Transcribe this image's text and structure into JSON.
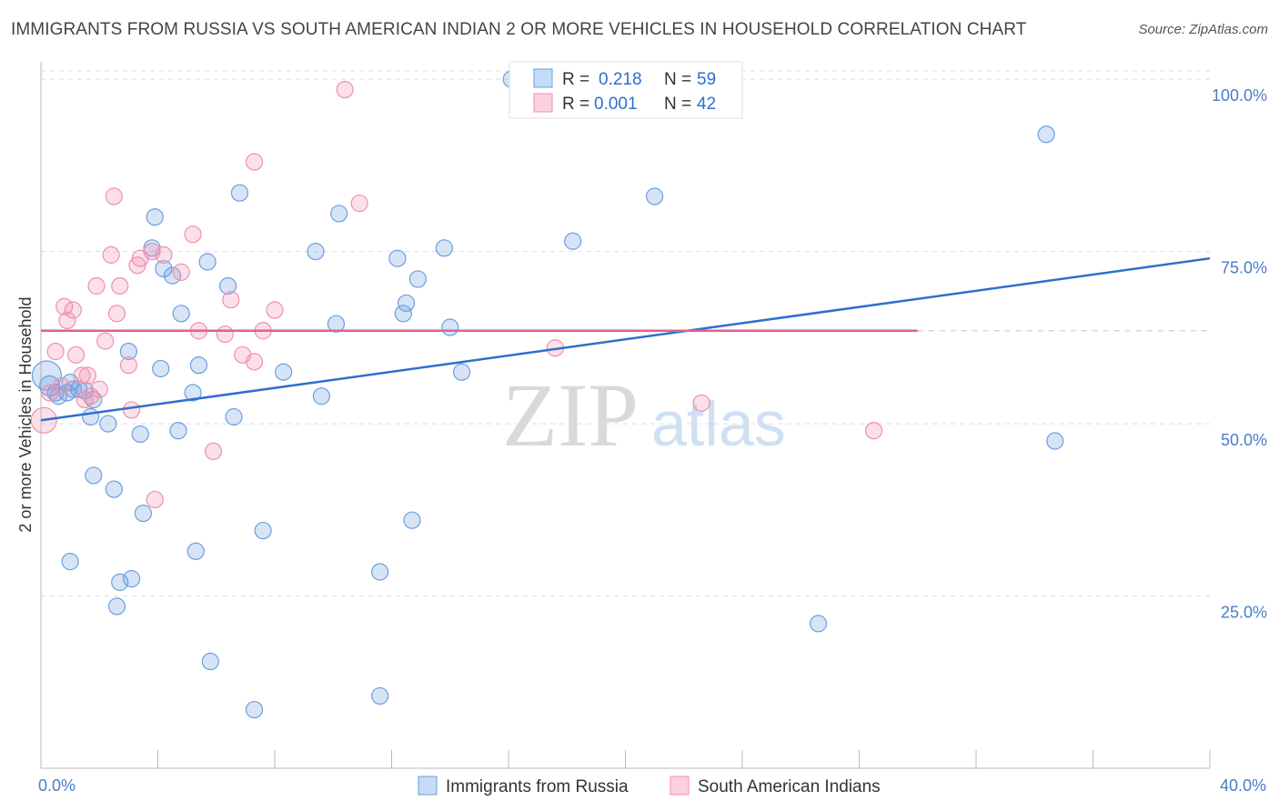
{
  "title": "IMMIGRANTS FROM RUSSIA VS SOUTH AMERICAN INDIAN 2 OR MORE VEHICLES IN HOUSEHOLD CORRELATION CHART",
  "source": "Source: ZipAtlas.com",
  "colors": {
    "blue": "#6b9fe0",
    "blue_line": "#2e6fd0",
    "pink": "#f08fb0",
    "pink_line": "#e0608f",
    "tick": "#4a7cc8"
  },
  "legend": {
    "r_label": "R =",
    "n_label": "N =",
    "rows": [
      {
        "r": "0.218",
        "n": "59",
        "color": "blue"
      },
      {
        "r": "0.001",
        "n": "42",
        "color": "pink"
      }
    ]
  },
  "bottom_legend": [
    "Immigrants from Russia",
    "South American Indians"
  ],
  "watermark": {
    "zip": "ZIP",
    "atlas": "atlas"
  },
  "chart_data": {
    "type": "scatter",
    "xlabel": "",
    "ylabel": "2 or more Vehicles in Household",
    "x_tick_labels": [
      "0.0%",
      "40.0%"
    ],
    "y_tick_labels": [
      "25.0%",
      "50.0%",
      "75.0%",
      "100.0%"
    ],
    "xlim": [
      0,
      40
    ],
    "ylim": [
      0,
      102
    ],
    "y_ticks": [
      25,
      50,
      75,
      100
    ],
    "series": [
      {
        "name": "Immigrants from Russia",
        "color": "blue",
        "trend": {
          "x": [
            0,
            40
          ],
          "y": [
            50.5,
            74.0
          ]
        },
        "points": [
          [
            0.2,
            57,
            16
          ],
          [
            0.3,
            55.5,
            11
          ],
          [
            0.5,
            54.5,
            9
          ],
          [
            0.9,
            54.5,
            9
          ],
          [
            1.0,
            56,
            9
          ],
          [
            1.3,
            55,
            9
          ],
          [
            1.5,
            54.8,
            9
          ],
          [
            1.7,
            51,
            9
          ],
          [
            1.8,
            53.5,
            9
          ],
          [
            2.3,
            50,
            9
          ],
          [
            1.8,
            42.5,
            9
          ],
          [
            2.5,
            40.5,
            9
          ],
          [
            3.0,
            60.5,
            9
          ],
          [
            3.4,
            48.5,
            9
          ],
          [
            3.5,
            37,
            9
          ],
          [
            3.8,
            75.5,
            9
          ],
          [
            3.9,
            80,
            9
          ],
          [
            4.1,
            58,
            9
          ],
          [
            4.2,
            72.5,
            9
          ],
          [
            4.5,
            71.5,
            9
          ],
          [
            4.7,
            49,
            9
          ],
          [
            4.8,
            66,
            9
          ],
          [
            5.2,
            54.5,
            9
          ],
          [
            5.3,
            31.5,
            9
          ],
          [
            5.4,
            58.5,
            9
          ],
          [
            5.7,
            73.5,
            9
          ],
          [
            6.4,
            70,
            9
          ],
          [
            6.6,
            51,
            9
          ],
          [
            6.8,
            83.5,
            9
          ],
          [
            7.3,
            8.5,
            9
          ],
          [
            7.6,
            34.5,
            9
          ],
          [
            8.3,
            57.5,
            9
          ],
          [
            9.4,
            75,
            9
          ],
          [
            9.6,
            54,
            9
          ],
          [
            10.1,
            64.5,
            9
          ],
          [
            10.2,
            80.5,
            9
          ],
          [
            11.6,
            28.5,
            9
          ],
          [
            11.6,
            10.5,
            9
          ],
          [
            12.2,
            74,
            9
          ],
          [
            12.4,
            66,
            9
          ],
          [
            12.5,
            67.5,
            9
          ],
          [
            12.7,
            36,
            9
          ],
          [
            12.9,
            71,
            9
          ],
          [
            13.8,
            75.5,
            9
          ],
          [
            14.0,
            64,
            9
          ],
          [
            14.4,
            57.5,
            9
          ],
          [
            16.1,
            100,
            9
          ],
          [
            18.2,
            76.5,
            9
          ],
          [
            21.0,
            83,
            9
          ],
          [
            26.6,
            21,
            9
          ],
          [
            34.4,
            92,
            9
          ],
          [
            34.7,
            47.5,
            9
          ],
          [
            1.0,
            30,
            9
          ],
          [
            2.7,
            27,
            9
          ],
          [
            3.1,
            27.5,
            9
          ],
          [
            2.6,
            23.5,
            9
          ],
          [
            5.8,
            15.5,
            9
          ],
          [
            0.6,
            54,
            9
          ],
          [
            1.1,
            55,
            9
          ]
        ]
      },
      {
        "name": "South American Indians",
        "color": "pink",
        "trend": {
          "x": [
            0,
            30
          ],
          "y": [
            63.5,
            63.5
          ]
        },
        "points": [
          [
            0.1,
            50.5,
            14
          ],
          [
            0.3,
            54.5,
            9
          ],
          [
            0.5,
            60.5,
            9
          ],
          [
            0.7,
            55.5,
            9
          ],
          [
            0.8,
            67,
            9
          ],
          [
            0.9,
            65,
            9
          ],
          [
            1.1,
            66.5,
            9
          ],
          [
            1.2,
            60,
            9
          ],
          [
            1.4,
            57,
            9
          ],
          [
            1.5,
            53.5,
            9
          ],
          [
            1.7,
            54,
            9
          ],
          [
            1.9,
            70,
            9
          ],
          [
            2.0,
            55,
            9
          ],
          [
            2.2,
            62,
            9
          ],
          [
            2.4,
            74.5,
            9
          ],
          [
            2.5,
            83,
            9
          ],
          [
            2.7,
            70,
            9
          ],
          [
            2.6,
            66,
            9
          ],
          [
            3.0,
            58.5,
            9
          ],
          [
            3.1,
            52,
            9
          ],
          [
            3.3,
            73,
            9
          ],
          [
            3.4,
            74,
            9
          ],
          [
            3.8,
            75,
            9
          ],
          [
            3.9,
            39,
            9
          ],
          [
            4.8,
            72,
            9
          ],
          [
            5.2,
            77.5,
            9
          ],
          [
            5.4,
            63.5,
            9
          ],
          [
            5.9,
            46,
            9
          ],
          [
            6.3,
            63,
            9
          ],
          [
            6.5,
            68,
            9
          ],
          [
            6.9,
            60,
            9
          ],
          [
            7.3,
            59,
            9
          ],
          [
            7.3,
            88,
            9
          ],
          [
            7.6,
            63.5,
            9
          ],
          [
            8.0,
            66.5,
            9
          ],
          [
            10.4,
            98.5,
            9
          ],
          [
            10.9,
            82,
            9
          ],
          [
            17.6,
            61,
            9
          ],
          [
            22.6,
            53,
            9
          ],
          [
            28.5,
            49,
            9
          ],
          [
            4.2,
            74.5,
            9
          ],
          [
            1.6,
            57,
            9
          ]
        ]
      }
    ],
    "grid": true,
    "legend_position": "top-center"
  }
}
